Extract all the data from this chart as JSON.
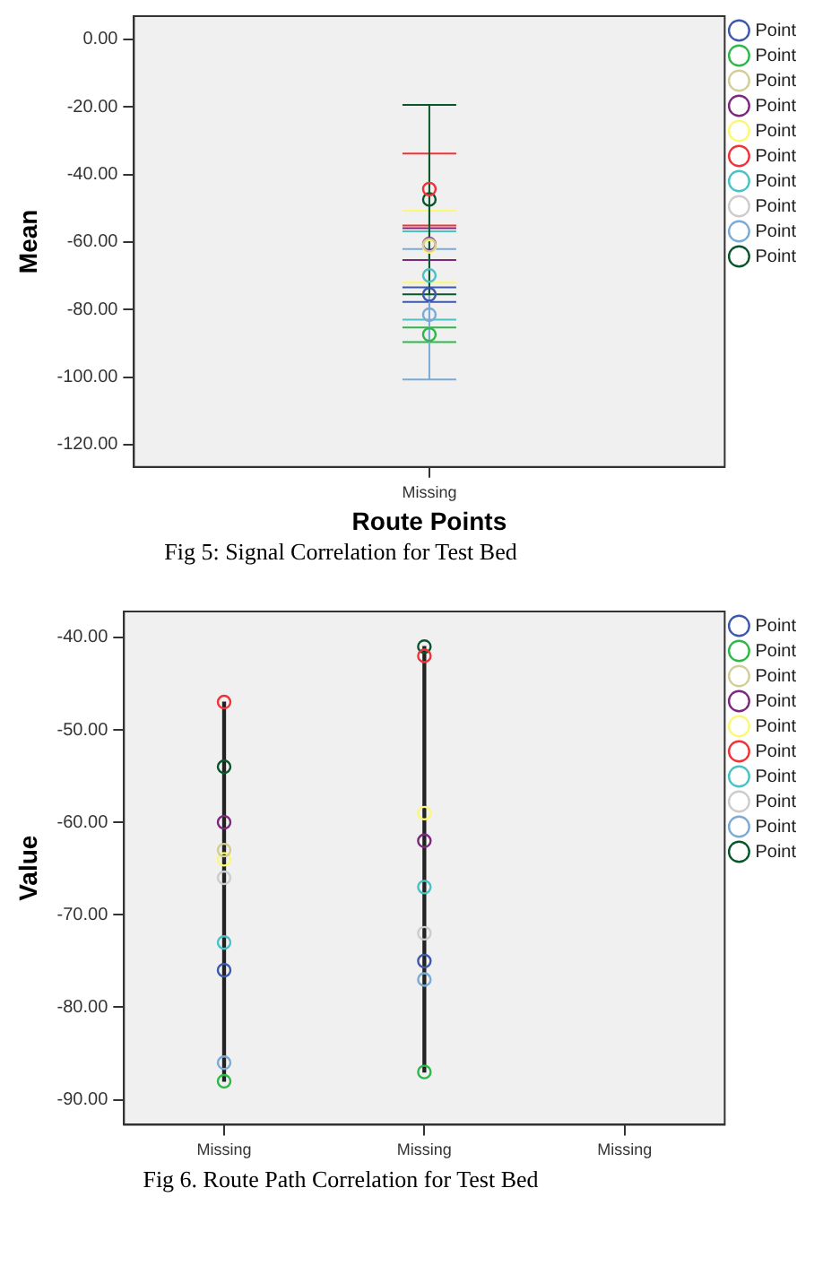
{
  "chart_data": [
    {
      "type": "scatter",
      "xlabel": "Route Points",
      "ylabel": "Mean",
      "categories": [
        "Missing"
      ],
      "ylim": [
        -126.6,
        6.9
      ],
      "yticks": [
        {
          "value": 0,
          "label": "0.00"
        },
        {
          "value": -20,
          "label": "-20.00"
        },
        {
          "value": -40,
          "label": "-40.00"
        },
        {
          "value": -60,
          "label": "-60.00"
        },
        {
          "value": -80,
          "label": "-80.00"
        },
        {
          "value": -100,
          "label": "-100.00"
        },
        {
          "value": -120,
          "label": "-120.00"
        }
      ],
      "grid": false,
      "legend": "top right",
      "marker": "circle",
      "series": [
        {
          "name": "Point",
          "color": "#3e58ac",
          "values": [
            -75.5
          ],
          "errors": [
            [
              -77.7,
              -73.4
            ]
          ]
        },
        {
          "name": "Point",
          "color": "#2eb848",
          "values": [
            -87.4
          ],
          "errors": [
            [
              -89.6,
              -85.3
            ]
          ]
        },
        {
          "name": "Point",
          "color": "#d3ce97",
          "values": [
            -60.9
          ],
          "errors": [
            null
          ]
        },
        {
          "name": "Point",
          "color": "#7c287d",
          "values": [
            -60.6
          ],
          "errors": [
            [
              -65.3,
              -55.9
            ]
          ]
        },
        {
          "name": "Point",
          "color": "#fbf873",
          "values": [
            -61.3
          ],
          "errors": [
            [
              -72.0,
              -50.7
            ]
          ]
        },
        {
          "name": "Point",
          "color": "#ef3338",
          "values": [
            -44.3
          ],
          "errors": [
            [
              -55.1,
              -33.8
            ]
          ]
        },
        {
          "name": "Point",
          "color": "#48c2c5",
          "values": [
            -69.9
          ],
          "errors": [
            [
              -83.0,
              -56.8
            ]
          ]
        },
        {
          "name": "Point",
          "color": "#cccccc",
          "values": [
            null
          ],
          "errors": [
            null
          ]
        },
        {
          "name": "Point",
          "color": "#7aaad5",
          "values": [
            -81.5
          ],
          "errors": [
            [
              -100.7,
              -62.1
            ]
          ]
        },
        {
          "name": "Point",
          "color": "#0a562c",
          "values": [
            -47.4
          ],
          "errors": [
            [
              -75.5,
              -19.4
            ]
          ]
        }
      ],
      "annotations": [
        "Fig 5: Signal Correlation for Test Bed"
      ]
    },
    {
      "type": "scatter",
      "ylabel": "Value",
      "categories": [
        "Missing",
        "Missing",
        "Missing"
      ],
      "ylim": [
        -92.7,
        -37.2
      ],
      "yticks": [
        {
          "value": -40,
          "label": "-40.00"
        },
        {
          "value": -50,
          "label": "-50.00"
        },
        {
          "value": -60,
          "label": "-60.00"
        },
        {
          "value": -70,
          "label": "-70.00"
        },
        {
          "value": -80,
          "label": "-80.00"
        },
        {
          "value": -90,
          "label": "-90.00"
        }
      ],
      "grid": false,
      "legend": "top right",
      "marker": "circle",
      "series": [
        {
          "type": "bar",
          "color": "#222222",
          "values": [
            41,
            46,
            null
          ],
          "base": [
            -88,
            -87,
            null
          ]
        },
        {
          "name": "Point",
          "color": "#3e58ac",
          "values": [
            -76,
            -75,
            null
          ]
        },
        {
          "name": "Point",
          "color": "#2eb848",
          "values": [
            -88,
            -87,
            null
          ]
        },
        {
          "name": "Point",
          "color": "#d3ce97",
          "values": [
            -63,
            null,
            null
          ]
        },
        {
          "name": "Point",
          "color": "#7c287d",
          "values": [
            -60,
            -62,
            null
          ]
        },
        {
          "name": "Point",
          "color": "#fbf873",
          "values": [
            -64,
            -59,
            null
          ]
        },
        {
          "name": "Point",
          "color": "#ef3338",
          "values": [
            -47,
            -42,
            null
          ]
        },
        {
          "name": "Point",
          "color": "#48c2c5",
          "values": [
            -73,
            -67,
            null
          ]
        },
        {
          "name": "Point",
          "color": "#cccccc",
          "values": [
            -66,
            -72,
            null
          ]
        },
        {
          "name": "Point",
          "color": "#7aaad5",
          "values": [
            -86,
            -77,
            null
          ]
        },
        {
          "name": "Point",
          "color": "#0a562c",
          "values": [
            -54,
            -41,
            null
          ]
        }
      ],
      "annotations": [
        "Fig 6. Route Path Correlation for Test Bed"
      ]
    }
  ]
}
